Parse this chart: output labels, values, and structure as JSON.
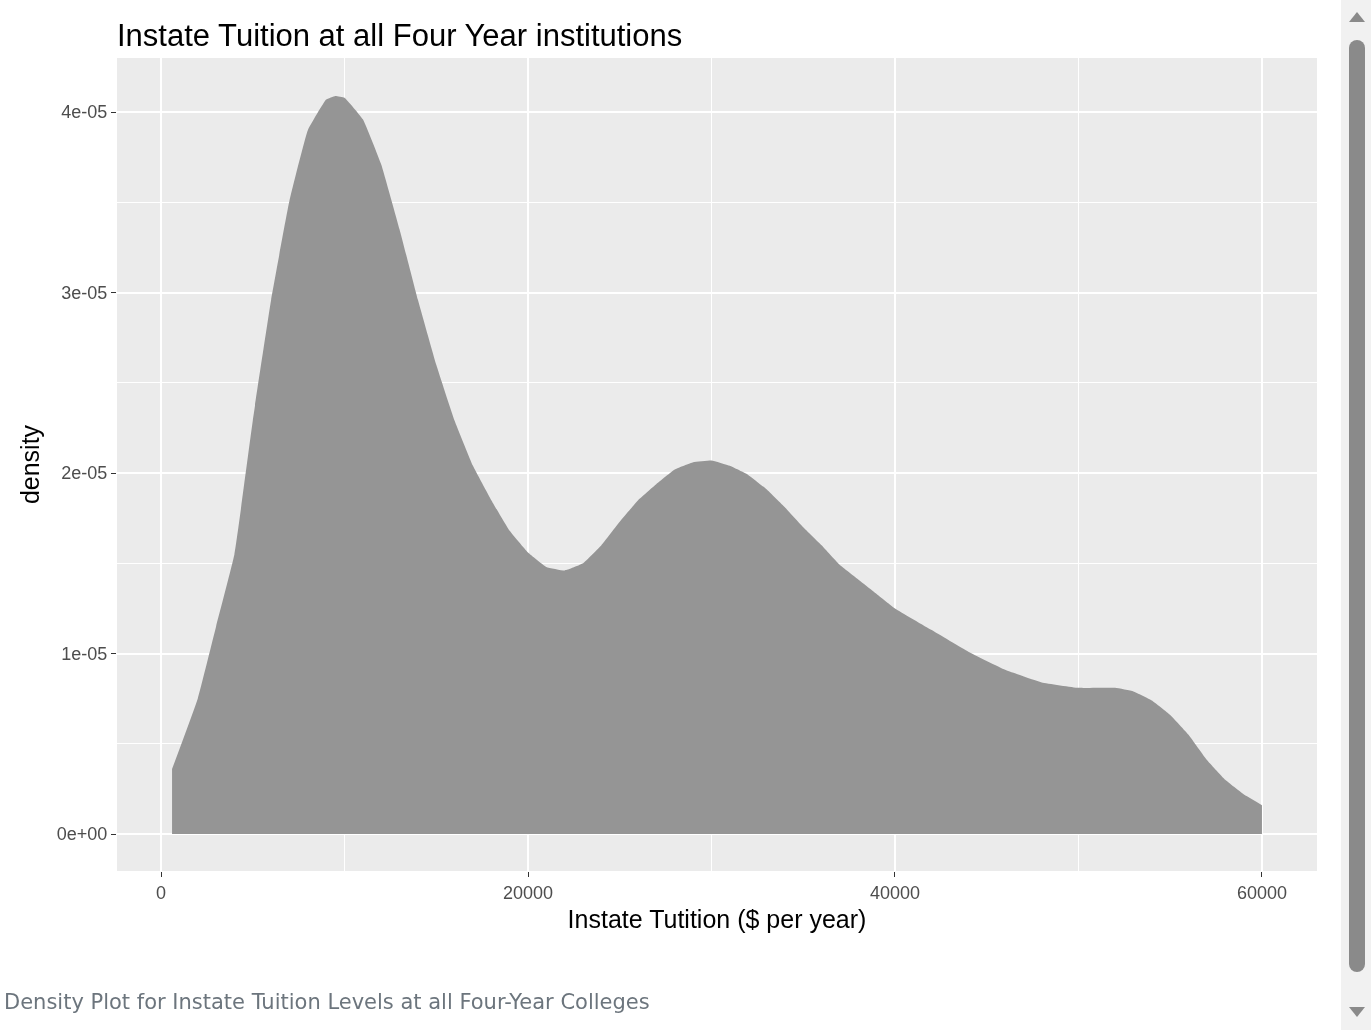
{
  "chart_data": {
    "type": "area",
    "title": "Instate Tuition at all Four Year institutions",
    "xlabel": "Instate Tutition ($ per year)",
    "ylabel": "density",
    "annotations": [
      "Density Plot for Instate Tuition Levels at all Four-Year Colleges"
    ],
    "x": [
      600,
      2000,
      3000,
      4000,
      5000,
      6000,
      7000,
      8000,
      9000,
      9500,
      10000,
      11000,
      12000,
      13000,
      14000,
      15000,
      16000,
      17000,
      18000,
      19000,
      20000,
      21000,
      22000,
      23000,
      24000,
      25000,
      26000,
      27000,
      28000,
      29000,
      30000,
      31000,
      32000,
      33000,
      34000,
      35000,
      36000,
      37000,
      38000,
      39000,
      40000,
      42000,
      44000,
      46000,
      48000,
      50000,
      52000,
      53000,
      54000,
      55000,
      56000,
      57000,
      58000,
      59000,
      60000
    ],
    "series": [
      {
        "color": "#959595",
        "values": [
          3.6e-06,
          7.5e-06,
          1.15e-05,
          1.55e-05,
          2.29e-05,
          2.96e-05,
          3.51e-05,
          3.9e-05,
          4.07e-05,
          4.09e-05,
          4.08e-05,
          3.96e-05,
          3.71e-05,
          3.35e-05,
          2.96e-05,
          2.6e-05,
          2.29e-05,
          2.04e-05,
          1.85e-05,
          1.68e-05,
          1.56e-05,
          1.48e-05,
          1.46e-05,
          1.5e-05,
          1.6e-05,
          1.73e-05,
          1.85e-05,
          1.94e-05,
          2.02e-05,
          2.06e-05,
          2.07e-05,
          2.04e-05,
          1.99e-05,
          1.91e-05,
          1.81e-05,
          1.7e-05,
          1.6e-05,
          1.49e-05,
          1.41e-05,
          1.33e-05,
          1.25e-05,
          1.13e-05,
          1.01e-05,
          9.1e-06,
          8.4e-06,
          8.1e-06,
          8.1e-06,
          7.9e-06,
          7.4e-06,
          6.6e-06,
          5.5e-06,
          4.1e-06,
          3e-06,
          2.2e-06,
          1.6e-06
        ]
      }
    ],
    "xlim": [
      -2400,
      63000
    ],
    "xticks": [
      0,
      20000,
      40000,
      60000
    ],
    "ylim": [
      -2.05e-06,
      4.3e-05
    ],
    "yticks": [
      {
        "value": 0,
        "label": "0e+00"
      },
      {
        "value": 1e-05,
        "label": "1e-05"
      },
      {
        "value": 2e-05,
        "label": "2e-05"
      },
      {
        "value": 3e-05,
        "label": "3e-05"
      },
      {
        "value": 4e-05,
        "label": "4e-05"
      }
    ],
    "grid": true
  }
}
